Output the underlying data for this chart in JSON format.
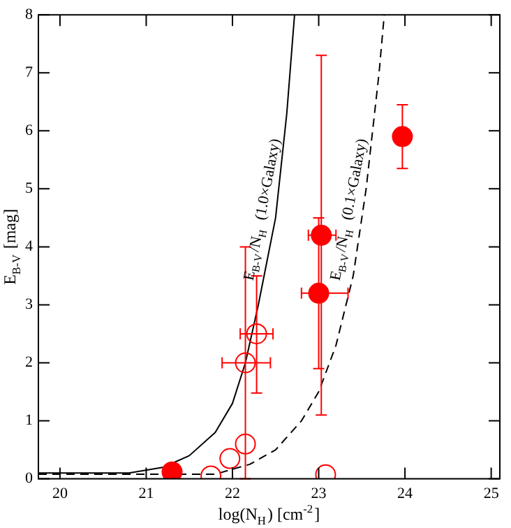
{
  "chart_data": {
    "type": "scatter",
    "xlabel": "log(N$_{H}$) [cm$^{-2}$]",
    "ylabel": "E$_{B-V}$ [mag]",
    "xlim": [
      19.75,
      25.1
    ],
    "ylim": [
      0,
      8
    ],
    "xticks": [
      20,
      21,
      22,
      23,
      24,
      25
    ],
    "yticks": [
      0,
      1,
      2,
      3,
      4,
      5,
      6,
      7,
      8
    ],
    "grid": false,
    "legend": false,
    "marker": "circle",
    "series": [
      {
        "color": "#ff0000",
        "x": [
          21.3,
          23.0,
          23.03,
          23.97
        ],
        "values": [
          0.12,
          3.2,
          4.2,
          5.9
        ],
        "errors": [
          null,
          [
            1.9,
            4.5
          ],
          [
            1.1,
            7.3
          ],
          [
            5.35,
            6.45
          ]
        ],
        "xerrors": [
          null,
          [
            22.8,
            23.34
          ],
          [
            22.88,
            23.2
          ],
          null
        ]
      },
      {
        "color": "#ff0000",
        "x": [
          22.15,
          22.28,
          22.15,
          21.97,
          21.75,
          23.08
        ],
        "values": [
          2.0,
          2.5,
          0.6,
          0.35,
          0.05,
          0.07
        ],
        "errors": [
          [
            0,
            4.0
          ],
          [
            1.48,
            3.5
          ],
          null,
          null,
          null,
          null
        ],
        "xerrors": [
          [
            21.88,
            22.44
          ],
          [
            22.09,
            22.47
          ],
          null,
          null,
          null,
          null
        ]
      },
      {
        "type": "line",
        "color": "#000000",
        "marker": "none",
        "line_style": "solid",
        "x": [
          19.75,
          20.8,
          21.2,
          21.5,
          21.8,
          22.0,
          22.15,
          22.3,
          22.5,
          22.63,
          22.72
        ],
        "values": [
          0.1,
          0.1,
          0.2,
          0.4,
          0.8,
          1.3,
          2.0,
          3.0,
          4.5,
          6.3,
          8.0
        ]
      },
      {
        "type": "line",
        "color": "#000000",
        "marker": "none",
        "line_style": "dashed",
        "x": [
          19.75,
          21.8,
          22.2,
          22.5,
          22.8,
          23.0,
          23.2,
          23.4,
          23.55,
          23.7,
          23.76
        ],
        "values": [
          0.08,
          0.08,
          0.25,
          0.5,
          1.0,
          1.5,
          2.3,
          3.5,
          5.0,
          7.0,
          8.0
        ]
      }
    ],
    "annotations": [
      "E$_{B-V}$/N$_{H}$ (1.0×Galaxy)",
      "E$_{B-V}$/N$_{H}$ (0.1×Galaxy)"
    ]
  }
}
